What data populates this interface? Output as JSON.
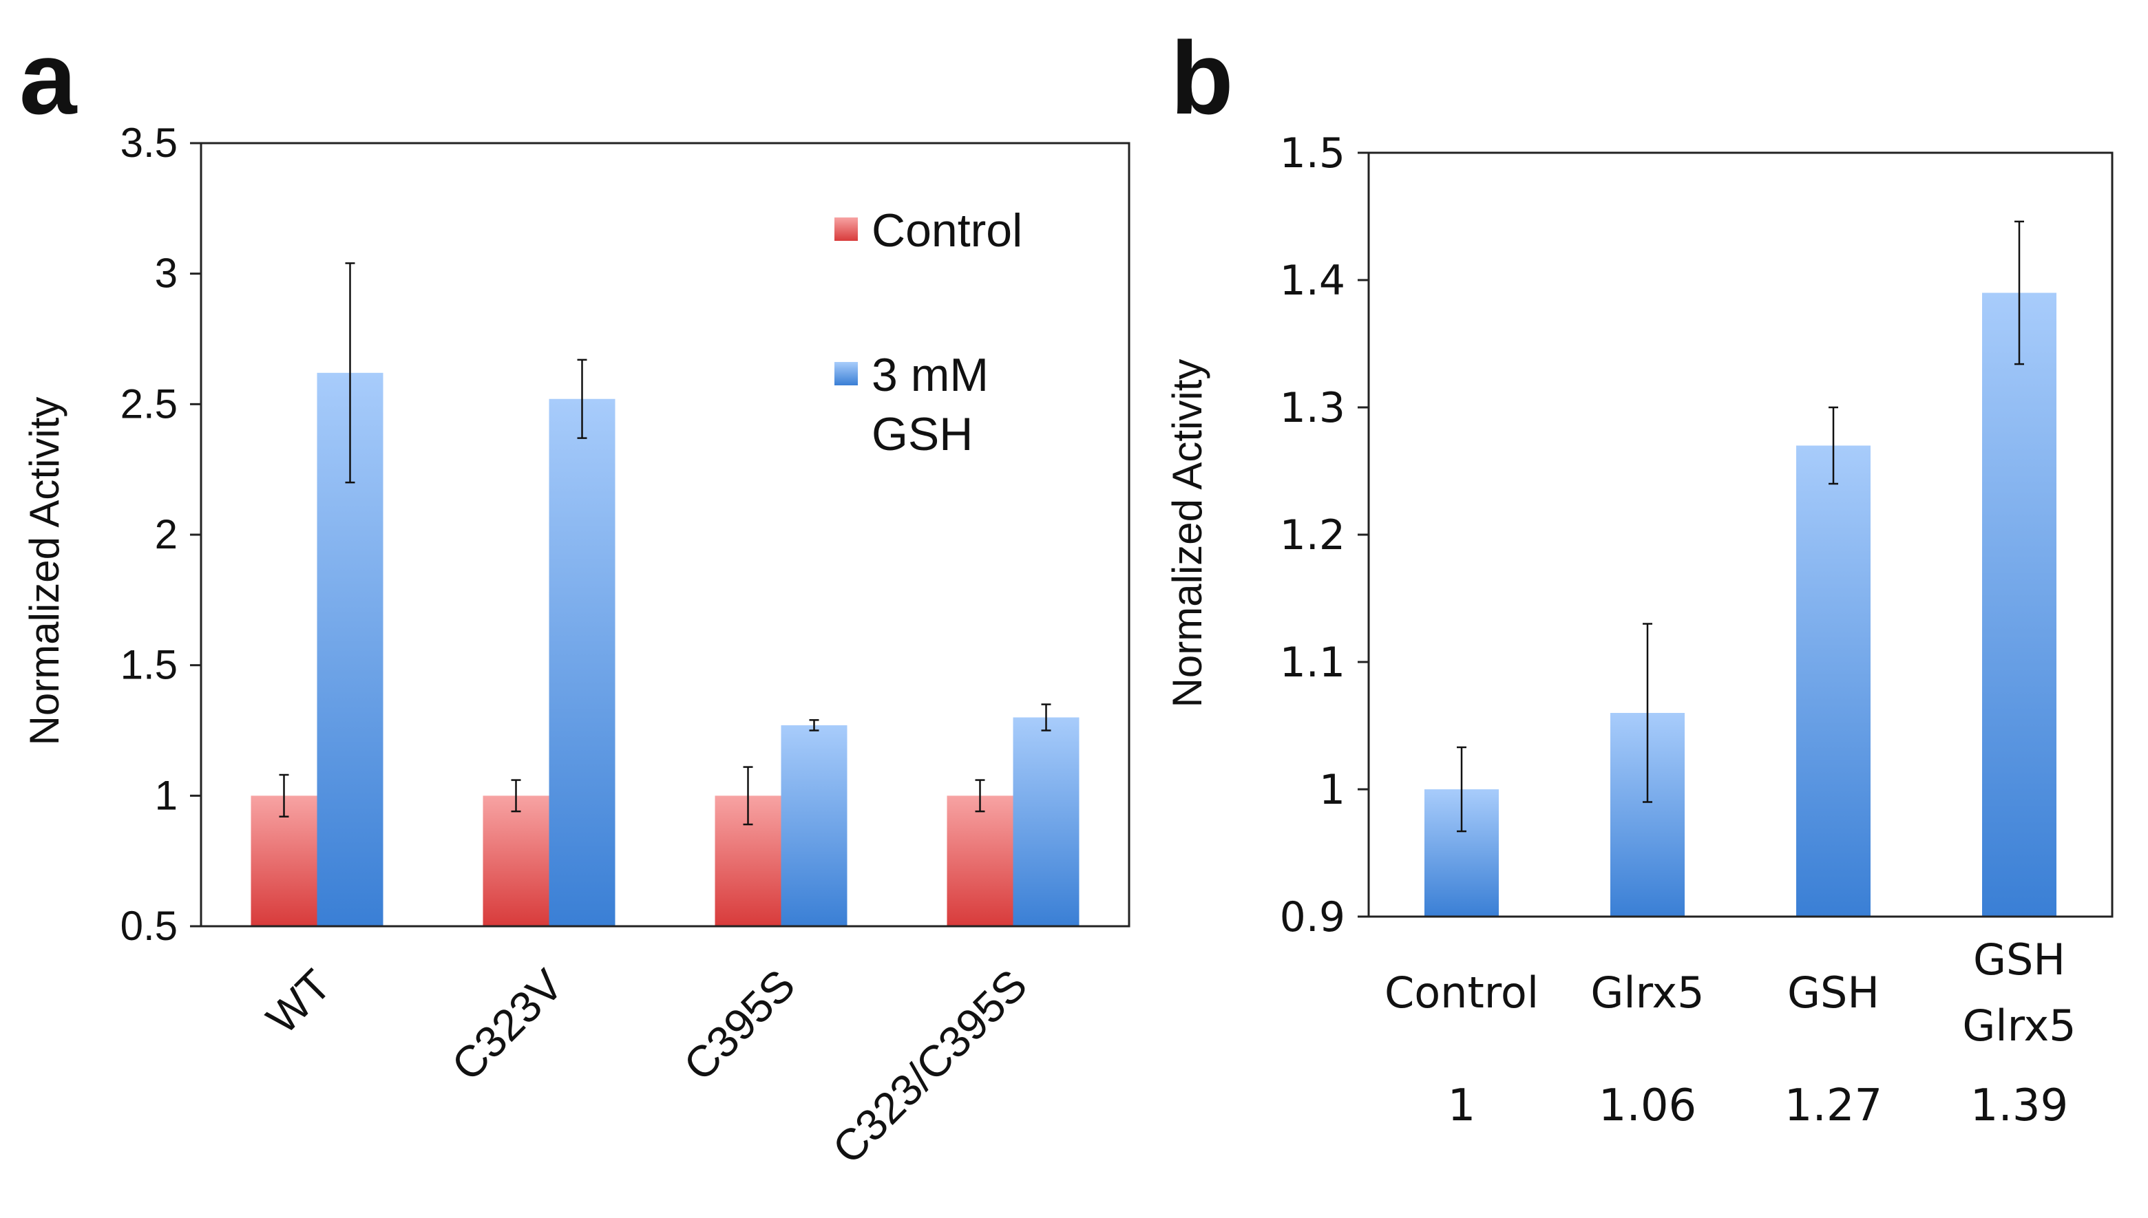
{
  "panel_labels": {
    "a": "a",
    "b": "b"
  },
  "colors": {
    "control_top": "#f7a3a3",
    "control_bottom": "#d83b3b",
    "gsh_top": "#a8ccfb",
    "gsh_bottom": "#3a7fd5",
    "axis": "#222222"
  },
  "chart_data": [
    {
      "panel": "a",
      "type": "bar",
      "title": "",
      "xlabel": "",
      "ylabel": "Normalized  Activity",
      "ylim": [
        0.5,
        3.5
      ],
      "yticks": [
        "0.5",
        "1",
        "1.5",
        "2",
        "2.5",
        "3",
        "3.5"
      ],
      "grid": false,
      "legend_position": "top-right",
      "categories": [
        "WT",
        "C323V",
        "C395S",
        "C323/C395S"
      ],
      "series": [
        {
          "name": "Control",
          "legend_lines": [
            "Control"
          ],
          "values": [
            1.0,
            1.0,
            1.0,
            1.0
          ],
          "errors": [
            0.08,
            0.06,
            0.11,
            0.06
          ]
        },
        {
          "name": "3 mM GSH",
          "legend_lines": [
            "3 mM",
            "GSH"
          ],
          "values": [
            2.62,
            2.52,
            1.27,
            1.3
          ],
          "errors": [
            0.42,
            0.15,
            0.02,
            0.05
          ]
        }
      ]
    },
    {
      "panel": "b",
      "type": "bar",
      "title": "",
      "xlabel": "",
      "ylabel": "Normalized Activity",
      "ylim": [
        0.9,
        1.5
      ],
      "yticks": [
        "0.9",
        "1",
        "1.1",
        "1.2",
        "1.3",
        "1.4",
        "1.5"
      ],
      "grid": false,
      "categories": [
        [
          "Control"
        ],
        [
          "Glrx5"
        ],
        [
          "GSH"
        ],
        [
          "GSH",
          "Glrx5"
        ]
      ],
      "values": [
        1.0,
        1.06,
        1.27,
        1.39
      ],
      "errors": [
        0.033,
        0.07,
        0.03,
        0.056
      ],
      "value_labels": [
        "1",
        "1.06",
        "1.27",
        "1.39"
      ]
    }
  ]
}
